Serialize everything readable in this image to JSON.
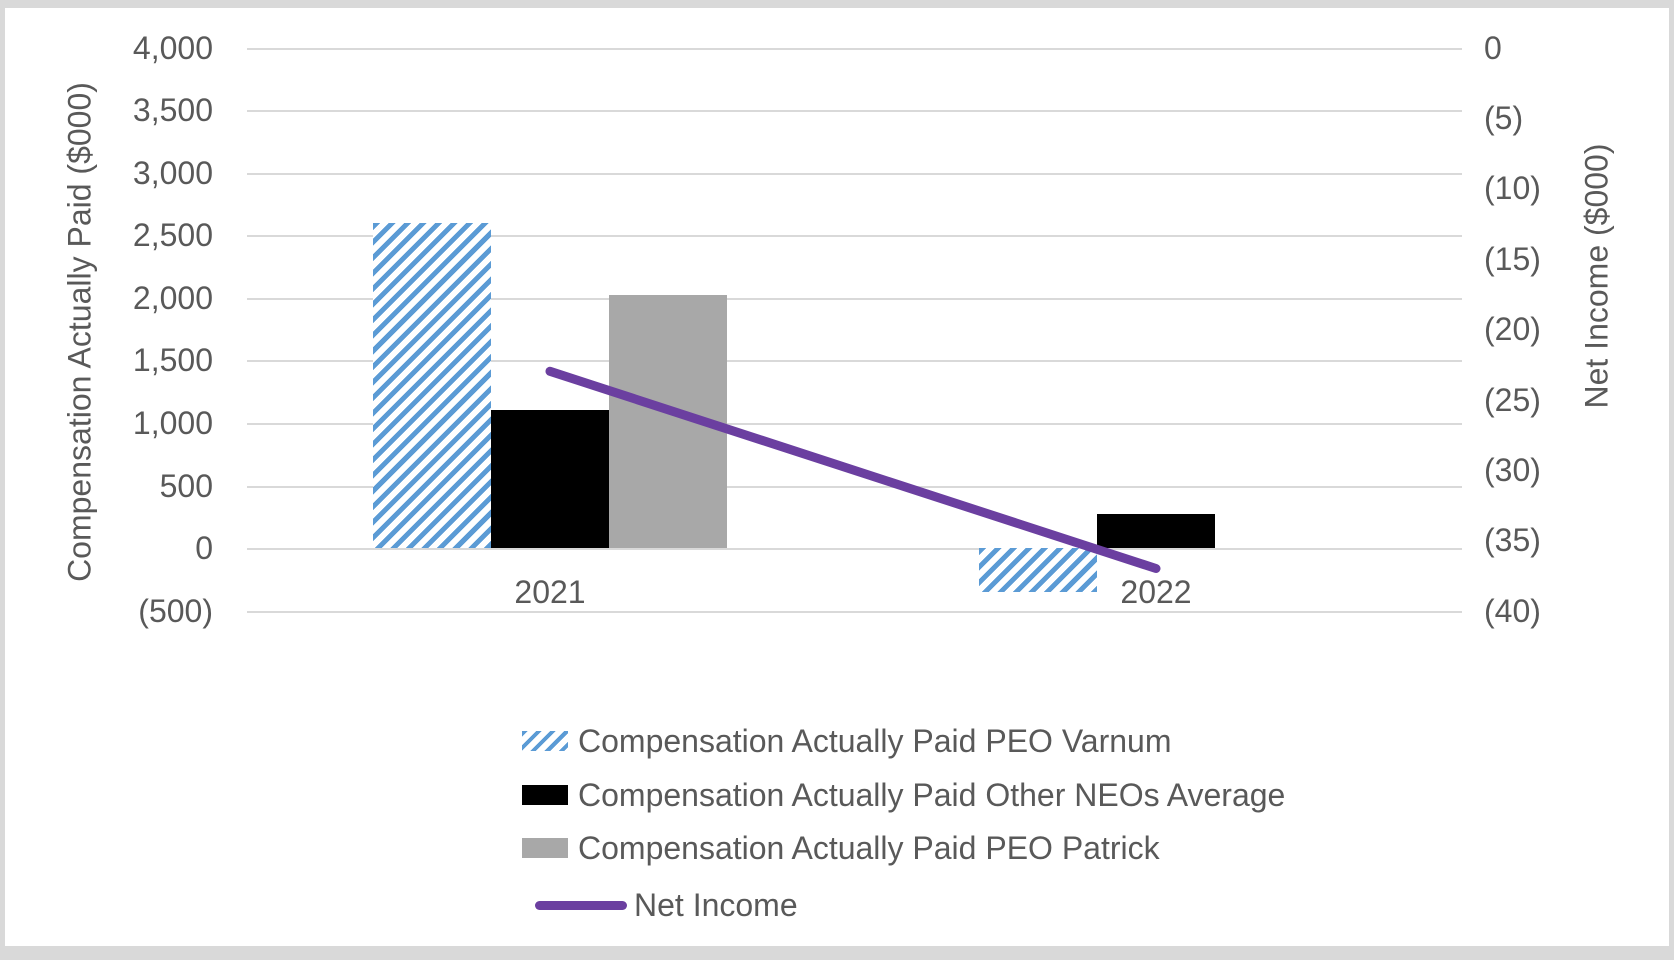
{
  "chart_data": {
    "type": "bar+line combo",
    "categories": [
      "2021",
      "2022"
    ],
    "bar_series": [
      {
        "name": "Compensation Actually Paid PEO Varnum",
        "values": [
          2600,
          -350
        ],
        "color": "#5B9BD5",
        "pattern": "diagonal-hatch"
      },
      {
        "name": "Compensation Actually Paid Other NEOs Average",
        "values": [
          1100,
          270
        ],
        "color": "#000000",
        "pattern": "solid"
      },
      {
        "name": "Compensation Actually Paid PEO Patrick",
        "values": [
          2020,
          null
        ],
        "color": "#A8A8A8",
        "pattern": "solid"
      }
    ],
    "line_series": [
      {
        "name": "Net Income",
        "values": [
          -23,
          -37
        ],
        "color": "#6B3FA0",
        "axis": "right"
      }
    ],
    "left_axis": {
      "title": "Compensation Actually Paid ($000)",
      "min": -500,
      "max": 4000,
      "tick_interval": 500,
      "tick_labels": [
        "4,000",
        "3,500",
        "3,000",
        "2,500",
        "2,000",
        "1,500",
        "1,000",
        "500",
        "0",
        "(500)"
      ]
    },
    "right_axis": {
      "title": "Net Income ($000)",
      "min": -40,
      "max": 0,
      "tick_interval": 5,
      "tick_labels": [
        "0",
        "(5)",
        "(10)",
        "(15)",
        "(20)",
        "(25)",
        "(30)",
        "(35)",
        "(40)"
      ]
    },
    "grid": "horizontal",
    "legend_position": "bottom-left"
  },
  "colors": {
    "gridline": "#D9D9D9",
    "text": "#595959",
    "frame_border": "#D9D9D9",
    "background": "#FFFFFF"
  }
}
